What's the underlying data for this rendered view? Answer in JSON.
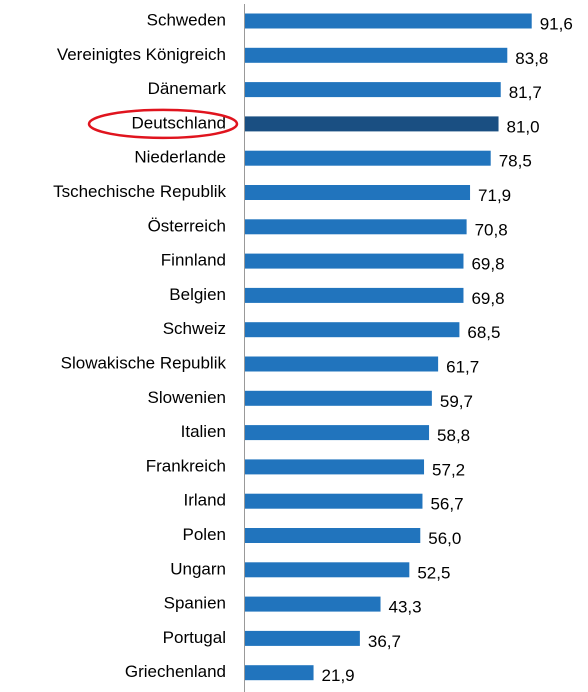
{
  "chart_data": {
    "type": "barh",
    "categories": [
      "Schweden",
      "Vereinigtes Königreich",
      "Dänemark",
      "Deutschland",
      "Niederlande",
      "Tschechische Republik",
      "Österreich",
      "Finnland",
      "Belgien",
      "Schweiz",
      "Slowakische Republik",
      "Slowenien",
      "Italien",
      "Frankreich",
      "Irland",
      "Polen",
      "Ungarn",
      "Spanien",
      "Portugal",
      "Griechenland"
    ],
    "values": [
      91.6,
      83.8,
      81.7,
      81.0,
      78.5,
      71.9,
      70.8,
      69.8,
      69.8,
      68.5,
      61.7,
      59.7,
      58.8,
      57.2,
      56.7,
      56.0,
      52.5,
      43.3,
      36.7,
      21.9
    ],
    "value_labels": [
      "91,6",
      "83,8",
      "81,7",
      "81,0",
      "78,5",
      "71,9",
      "70,8",
      "69,8",
      "69,8",
      "68,5",
      "61,7",
      "59,7",
      "58,8",
      "57,2",
      "56,7",
      "56,0",
      "52,5",
      "43,3",
      "36,7",
      "21,9"
    ],
    "color": "#2174bd",
    "highlight": 3,
    "highlight_color": "#1a4f82",
    "highlight_outline": "#e0141e"
  }
}
